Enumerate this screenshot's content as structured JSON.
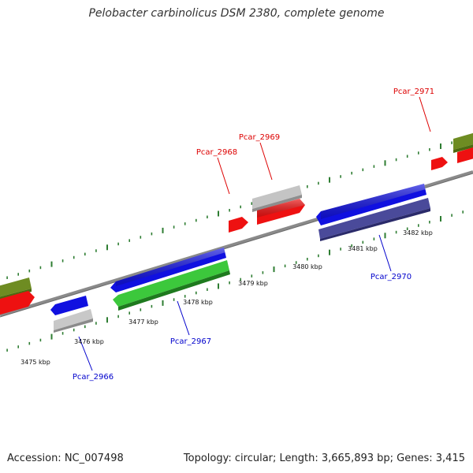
{
  "title": "Pelobacter carbinolicus DSM 2380, complete genome",
  "footer": {
    "accession": "Accession: NC_007498",
    "summary": "Topology: circular; Length: 3,665,893 bp; Genes: 3,415"
  },
  "colors": {
    "backbone": "#8a8a8a",
    "tick": "#2e7d32",
    "label_top": "#dd0000",
    "label_bottom": "#0000cc",
    "blue": "#1010e0",
    "navy": "#4a4a9a",
    "green": "#3cc83c",
    "olive": "#6e8c22",
    "red": "#ee1111",
    "gray": "#b8b8b8"
  },
  "kbp_labels": [
    "3475 kbp",
    "3476 kbp",
    "3477 kbp",
    "3478 kbp",
    "3479 kbp",
    "3480 kbp",
    "3481 kbp",
    "3482 kbp"
  ],
  "genes": [
    {
      "name": "Pcar_2966",
      "color": "blue"
    },
    {
      "name": "Pcar_2967",
      "color": "blue"
    },
    {
      "name": "Pcar_2968",
      "color": "red"
    },
    {
      "name": "Pcar_2969",
      "color": "red"
    },
    {
      "name": "Pcar_2970",
      "color": "blue"
    },
    {
      "name": "Pcar_2971",
      "color": "red"
    }
  ]
}
